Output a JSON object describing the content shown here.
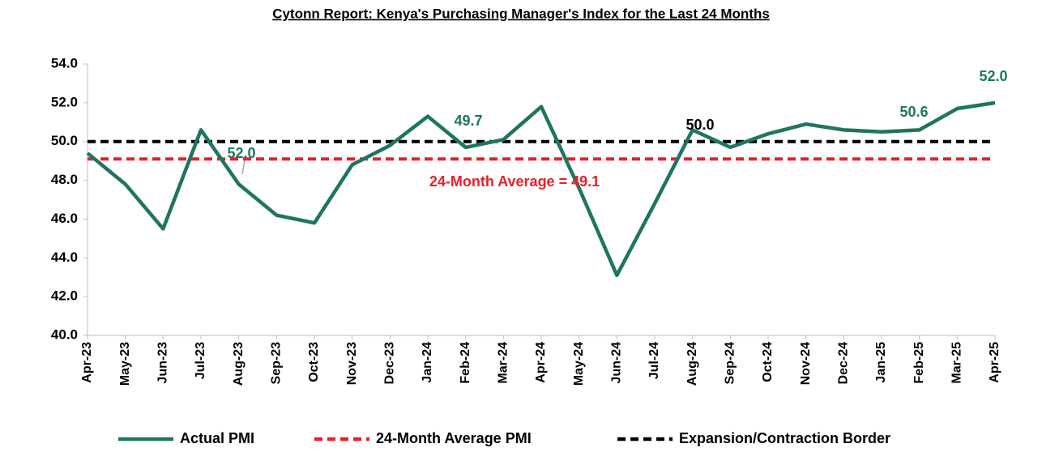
{
  "chart_data": {
    "type": "line",
    "title": "Cytonn Report: Kenya's Purchasing Manager's Index for the Last 24 Months",
    "categories": [
      "Apr-23",
      "May-23",
      "Jun-23",
      "Jul-23",
      "Aug-23",
      "Sep-23",
      "Oct-23",
      "Nov-23",
      "Dec-23",
      "Jan-24",
      "Feb-24",
      "Mar-24",
      "Apr-24",
      "May-24",
      "Jun-24",
      "Jul-24",
      "Aug-24",
      "Sep-24",
      "Oct-24",
      "Nov-24",
      "Dec-24",
      "Jan-25",
      "Feb-25",
      "Mar-25",
      "Apr-25"
    ],
    "series": [
      {
        "name": "Actual PMI",
        "color": "#1e7560",
        "values": [
          49.4,
          47.8,
          45.5,
          50.6,
          47.8,
          46.2,
          45.8,
          48.8,
          49.8,
          51.3,
          49.7,
          50.1,
          51.8,
          47.6,
          43.1,
          46.8,
          50.6,
          49.7,
          50.4,
          50.9,
          50.6,
          50.5,
          50.6,
          51.7,
          52.0
        ]
      }
    ],
    "reference_lines": [
      {
        "name": "24-Month Average PMI",
        "value": 49.1,
        "color": "#e8202a"
      },
      {
        "name": "Expansion/Contraction Border",
        "value": 50.0,
        "color": "#000000"
      }
    ],
    "annotations": [
      {
        "text": "52.0",
        "color": "#1e7560"
      },
      {
        "text": "49.7",
        "color": "#1e7560"
      },
      {
        "text": "50.0",
        "color": "#000000"
      },
      {
        "text": "50.6",
        "color": "#1e7560"
      },
      {
        "text": "52.0",
        "color": "#1e7560"
      },
      {
        "text": "24-Month Average = 49.1",
        "color": "#e8202a"
      }
    ],
    "ylim": [
      40,
      54
    ],
    "yticks": [
      {
        "value": 40,
        "label": "40.0"
      },
      {
        "value": 42,
        "label": "42.0"
      },
      {
        "value": 44,
        "label": "44.0"
      },
      {
        "value": 46,
        "label": "46.0"
      },
      {
        "value": 48,
        "label": "48.0"
      },
      {
        "value": 50,
        "label": "50.0"
      },
      {
        "value": 52,
        "label": "52.0"
      },
      {
        "value": 54,
        "label": "54.0"
      }
    ],
    "legend": "bottom"
  }
}
